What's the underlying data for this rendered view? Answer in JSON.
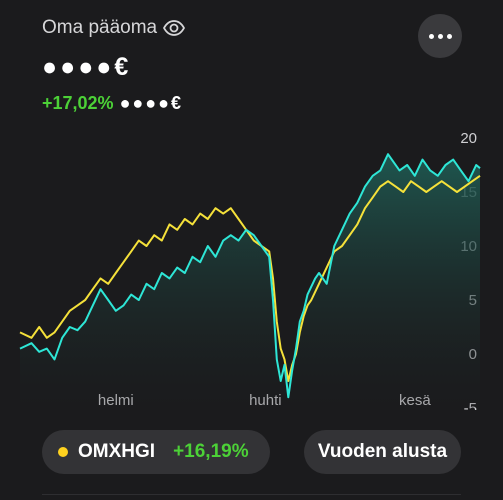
{
  "header": {
    "title": "Oma pääoma",
    "balance_masked": "●●●●€",
    "change_pct": "+17,02%",
    "change_amount_masked": "●●●●€"
  },
  "controls": {
    "index_name": "OMXHGI",
    "index_change": "+16,19%",
    "period_label": "Vuoden alusta"
  },
  "icons": {
    "visibility": "eye-icon",
    "more": "more-dots-icon",
    "index_marker": "yellow-dot-icon"
  },
  "colors": {
    "portfolio": "#2ee6d6",
    "index": "#f5e13a",
    "positive": "#4cd137",
    "background": "#1b1b1d"
  },
  "chart_data": {
    "type": "line",
    "title": "",
    "xlabel": "",
    "ylabel": "",
    "x_ticks": [
      "helmi",
      "huhti",
      "kesä"
    ],
    "y_ticks": [
      20,
      15,
      10,
      5,
      0,
      -5
    ],
    "ylim": [
      -5,
      20
    ],
    "x_range": [
      0,
      120
    ],
    "x_tick_positions": [
      25,
      64,
      103
    ],
    "series": [
      {
        "name": "Oma pääoma",
        "color": "#2ee6d6",
        "area": true,
        "points": [
          [
            0,
            0.5
          ],
          [
            3,
            1.0
          ],
          [
            5,
            0.2
          ],
          [
            7,
            0.5
          ],
          [
            9,
            -0.5
          ],
          [
            11,
            1.5
          ],
          [
            13,
            2.5
          ],
          [
            15,
            2.2
          ],
          [
            17,
            3.0
          ],
          [
            19,
            4.5
          ],
          [
            21,
            6.0
          ],
          [
            23,
            5.0
          ],
          [
            25,
            4.0
          ],
          [
            27,
            4.5
          ],
          [
            29,
            5.5
          ],
          [
            31,
            5.0
          ],
          [
            33,
            6.5
          ],
          [
            35,
            6.0
          ],
          [
            37,
            7.5
          ],
          [
            39,
            7.0
          ],
          [
            41,
            8.0
          ],
          [
            43,
            7.5
          ],
          [
            45,
            9.0
          ],
          [
            47,
            8.5
          ],
          [
            49,
            10.0
          ],
          [
            51,
            9.0
          ],
          [
            53,
            10.5
          ],
          [
            55,
            11.0
          ],
          [
            57,
            10.5
          ],
          [
            59,
            11.5
          ],
          [
            61,
            11.0
          ],
          [
            63,
            10.0
          ],
          [
            65,
            9.0
          ],
          [
            66,
            5.0
          ],
          [
            67,
            -0.5
          ],
          [
            68,
            -2.5
          ],
          [
            69,
            -1.0
          ],
          [
            70,
            -4.0
          ],
          [
            71,
            -1.5
          ],
          [
            72,
            0.5
          ],
          [
            73,
            3.0
          ],
          [
            74,
            4.0
          ],
          [
            75,
            5.5
          ],
          [
            77,
            7.0
          ],
          [
            78,
            7.5
          ],
          [
            80,
            6.5
          ],
          [
            82,
            10.0
          ],
          [
            84,
            11.5
          ],
          [
            86,
            13.0
          ],
          [
            88,
            14.0
          ],
          [
            90,
            15.5
          ],
          [
            92,
            16.5
          ],
          [
            94,
            17.0
          ],
          [
            96,
            18.5
          ],
          [
            97,
            18.0
          ],
          [
            99,
            17.0
          ],
          [
            101,
            17.5
          ],
          [
            103,
            16.5
          ],
          [
            105,
            18.0
          ],
          [
            107,
            17.0
          ],
          [
            109,
            16.5
          ],
          [
            111,
            17.5
          ],
          [
            113,
            18.0
          ],
          [
            115,
            17.0
          ],
          [
            117,
            16.0
          ],
          [
            119,
            17.5
          ],
          [
            120,
            17.2
          ]
        ]
      },
      {
        "name": "OMXHGI",
        "color": "#f5e13a",
        "area": false,
        "points": [
          [
            0,
            2.0
          ],
          [
            3,
            1.5
          ],
          [
            5,
            2.5
          ],
          [
            7,
            1.5
          ],
          [
            9,
            2.0
          ],
          [
            11,
            3.0
          ],
          [
            13,
            4.0
          ],
          [
            15,
            4.5
          ],
          [
            17,
            5.0
          ],
          [
            19,
            6.0
          ],
          [
            21,
            7.0
          ],
          [
            23,
            6.5
          ],
          [
            25,
            7.5
          ],
          [
            27,
            8.5
          ],
          [
            29,
            9.5
          ],
          [
            31,
            10.5
          ],
          [
            33,
            10.0
          ],
          [
            35,
            11.0
          ],
          [
            37,
            10.5
          ],
          [
            39,
            12.0
          ],
          [
            41,
            11.5
          ],
          [
            43,
            12.5
          ],
          [
            45,
            12.0
          ],
          [
            47,
            13.0
          ],
          [
            49,
            12.5
          ],
          [
            51,
            13.5
          ],
          [
            53,
            13.0
          ],
          [
            55,
            13.5
          ],
          [
            57,
            12.5
          ],
          [
            59,
            11.5
          ],
          [
            61,
            10.5
          ],
          [
            63,
            10.0
          ],
          [
            65,
            9.5
          ],
          [
            66,
            7.0
          ],
          [
            67,
            3.0
          ],
          [
            68,
            0.5
          ],
          [
            69,
            -0.5
          ],
          [
            70,
            -2.5
          ],
          [
            71,
            -1.0
          ],
          [
            72,
            0.0
          ],
          [
            73,
            2.0
          ],
          [
            74,
            3.5
          ],
          [
            75,
            4.5
          ],
          [
            76,
            5.0
          ],
          [
            78,
            6.5
          ],
          [
            80,
            8.0
          ],
          [
            82,
            9.5
          ],
          [
            84,
            10.0
          ],
          [
            86,
            11.0
          ],
          [
            88,
            12.0
          ],
          [
            90,
            13.5
          ],
          [
            92,
            14.5
          ],
          [
            94,
            15.5
          ],
          [
            96,
            16.0
          ],
          [
            98,
            15.5
          ],
          [
            100,
            15.0
          ],
          [
            102,
            16.0
          ],
          [
            104,
            15.5
          ],
          [
            106,
            15.0
          ],
          [
            108,
            15.5
          ],
          [
            110,
            16.0
          ],
          [
            112,
            15.5
          ],
          [
            114,
            15.0
          ],
          [
            116,
            15.5
          ],
          [
            118,
            16.0
          ],
          [
            120,
            16.5
          ]
        ]
      }
    ]
  }
}
